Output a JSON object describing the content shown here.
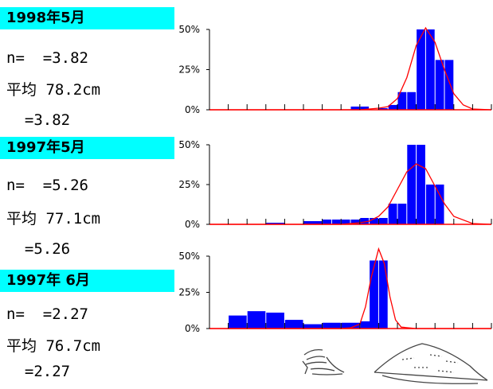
{
  "colors": {
    "label_bg": "#00ffff",
    "bar": "#0000ff",
    "curve": "#ff0000",
    "baseline": "#ff0000",
    "axis": "#000000"
  },
  "panels": [
    {
      "title": "1998年5月",
      "n_line": "n=  =3.82",
      "mean_line": "平均 78.2cm",
      "sd_line": "  =3.82"
    },
    {
      "title": "1997年5月",
      "n_line": "n=  =5.26",
      "mean_line": "平均 77.1cm",
      "sd_line": "  =5.26"
    },
    {
      "title": "1997年 6月",
      "n_line": "n=  =2.27",
      "mean_line": "平均 76.7cm",
      "sd_line": "  =2.27"
    }
  ],
  "chart_data": [
    {
      "type": "bar",
      "y_tick_labels": [
        "0%",
        "25%",
        "50%"
      ],
      "ylim": [
        0,
        50
      ],
      "x_ticks": [
        0,
        1,
        2,
        3,
        4,
        5,
        6,
        7,
        8,
        9,
        10,
        11,
        12,
        13,
        14,
        15
      ],
      "bars": [
        {
          "x": 7.5,
          "width": 0.5,
          "value": 2
        },
        {
          "x": 8.0,
          "width": 0.5,
          "value": 2
        },
        {
          "x": 9.0,
          "width": 0.5,
          "value": 1
        },
        {
          "x": 9.5,
          "width": 0.5,
          "value": 3
        },
        {
          "x": 10.0,
          "width": 0.5,
          "value": 11
        },
        {
          "x": 10.5,
          "width": 0.5,
          "value": 11
        },
        {
          "x": 11.0,
          "width": 0.5,
          "value": 50
        },
        {
          "x": 11.5,
          "width": 0.5,
          "value": 50
        },
        {
          "x": 12.0,
          "width": 0.5,
          "value": 31
        },
        {
          "x": 12.5,
          "width": 0.5,
          "value": 31
        }
      ],
      "curve": {
        "x": [
          0,
          8,
          9,
          9.5,
          10,
          10.5,
          11,
          11.5,
          12,
          12.5,
          13,
          13.5,
          14,
          15
        ],
        "y": [
          0,
          0,
          1,
          2,
          7,
          20,
          40,
          51,
          42,
          25,
          10,
          3,
          0.5,
          0
        ]
      }
    },
    {
      "type": "bar",
      "y_tick_labels": [
        "0%",
        "25%",
        "50%"
      ],
      "ylim": [
        0,
        50
      ],
      "x_ticks": [
        0,
        1,
        2,
        3,
        4,
        5,
        6,
        7,
        8,
        9,
        10,
        11,
        12,
        13,
        14,
        15
      ],
      "bars": [
        {
          "x": 3.0,
          "width": 1.0,
          "value": 1
        },
        {
          "x": 5.0,
          "width": 1.0,
          "value": 2
        },
        {
          "x": 6.0,
          "width": 0.5,
          "value": 3
        },
        {
          "x": 6.5,
          "width": 0.5,
          "value": 3
        },
        {
          "x": 7.0,
          "width": 0.5,
          "value": 3
        },
        {
          "x": 7.5,
          "width": 0.5,
          "value": 3
        },
        {
          "x": 8.0,
          "width": 0.5,
          "value": 4
        },
        {
          "x": 8.5,
          "width": 0.5,
          "value": 4
        },
        {
          "x": 9.0,
          "width": 0.5,
          "value": 4
        },
        {
          "x": 9.5,
          "width": 0.5,
          "value": 13
        },
        {
          "x": 10.0,
          "width": 0.5,
          "value": 13
        },
        {
          "x": 10.5,
          "width": 0.5,
          "value": 50
        },
        {
          "x": 11.0,
          "width": 0.5,
          "value": 50
        },
        {
          "x": 11.5,
          "width": 0.5,
          "value": 25
        },
        {
          "x": 12.0,
          "width": 0.5,
          "value": 25
        }
      ],
      "curve": {
        "x": [
          0,
          7,
          8,
          8.5,
          9,
          9.5,
          10,
          10.5,
          11,
          11.5,
          12,
          12.5,
          13,
          14,
          15
        ],
        "y": [
          0,
          0,
          1,
          2,
          5,
          11,
          22,
          33,
          38,
          35,
          24,
          13,
          5,
          0.5,
          0
        ]
      }
    },
    {
      "type": "bar",
      "y_tick_labels": [
        "0%",
        "25%",
        "50%"
      ],
      "ylim": [
        0,
        50
      ],
      "x_ticks": [
        0,
        1,
        2,
        3,
        4,
        5,
        6,
        7,
        8,
        9,
        10,
        11,
        12,
        13,
        14,
        15
      ],
      "bars": [
        {
          "x": 1.0,
          "width": 1.0,
          "value": 9
        },
        {
          "x": 2.0,
          "width": 1.0,
          "value": 12
        },
        {
          "x": 3.0,
          "width": 1.0,
          "value": 11
        },
        {
          "x": 4.0,
          "width": 1.0,
          "value": 6
        },
        {
          "x": 5.0,
          "width": 1.0,
          "value": 3
        },
        {
          "x": 6.0,
          "width": 1.0,
          "value": 4
        },
        {
          "x": 7.0,
          "width": 1.0,
          "value": 4
        },
        {
          "x": 8.0,
          "width": 1.0,
          "value": 5
        },
        {
          "x": 8.5,
          "width": 0.5,
          "value": 47
        },
        {
          "x": 9.0,
          "width": 0.5,
          "value": 47
        }
      ],
      "curve": {
        "x": [
          0,
          7,
          7.5,
          8,
          8.3,
          8.6,
          9,
          9.3,
          9.6,
          9.9,
          10.2,
          11,
          15
        ],
        "y": [
          0,
          0,
          0.5,
          3,
          15,
          35,
          55,
          45,
          22,
          6,
          1,
          0,
          0
        ]
      }
    }
  ]
}
